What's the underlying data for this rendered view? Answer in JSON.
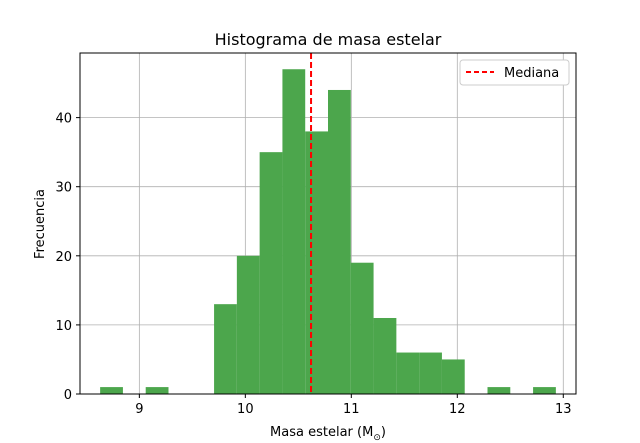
{
  "chart_data": {
    "type": "bar",
    "title": "Histograma de masa estelar",
    "xlabel": "Masa estelar (M",
    "xlabel_subscript": "⊙",
    "xlabel_close": ")",
    "ylabel": "Frecuencia",
    "xlim": [
      8.44,
      13.12
    ],
    "ylim": [
      0,
      49.35
    ],
    "xticks": [
      9,
      10,
      11,
      12,
      13
    ],
    "yticks": [
      0,
      10,
      20,
      30,
      40
    ],
    "grid": true,
    "legend_position": "top-right",
    "bin_edges": [
      8.63,
      8.845,
      9.06,
      9.275,
      9.49,
      9.705,
      9.92,
      10.135,
      10.35,
      10.565,
      10.78,
      10.995,
      11.21,
      11.425,
      11.64,
      11.855,
      12.07,
      12.285,
      12.5,
      12.715,
      12.93
    ],
    "counts": [
      1,
      0,
      1,
      0,
      0,
      13,
      20,
      35,
      47,
      38,
      44,
      19,
      11,
      6,
      6,
      5,
      0,
      1,
      0,
      1
    ],
    "bar_color": "#4ca64c",
    "median": 10.62,
    "median_color": "#ff0000",
    "legend": [
      {
        "label": "Mediana",
        "style": "dashed",
        "color": "#ff0000"
      }
    ]
  }
}
